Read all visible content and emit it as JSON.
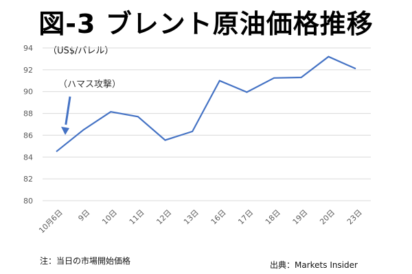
{
  "header": {
    "title": "図-3 ブレント原油価格推移"
  },
  "notes": {
    "unit": "（US$/バレル）",
    "annotation": "（ハマス攻撃）",
    "footnote": "注：当日の市場開始価格",
    "source": "出典：Markets Insider"
  },
  "colors": {
    "series": "#4472c4",
    "arrow": "#4472c4",
    "grid": "#d9d9d9"
  },
  "chart_data": {
    "type": "line",
    "title": "図-3 ブレント原油価格推移",
    "ylabel": "（US$/バレル）",
    "xlabel": "",
    "categories": [
      "10月6日",
      "9日",
      "10日",
      "11日",
      "12日",
      "13日",
      "16日",
      "17日",
      "18日",
      "19日",
      "20日",
      "23日"
    ],
    "series": [
      {
        "values": [
          84.5,
          86.5,
          88.15,
          87.7,
          85.55,
          86.35,
          91.0,
          89.95,
          91.25,
          91.3,
          93.2,
          92.1
        ]
      }
    ],
    "ylim": [
      80,
      94
    ],
    "yticks": [
      80,
      82,
      84,
      86,
      88,
      90,
      92,
      94
    ],
    "grid": true,
    "annotations": [
      {
        "text": "（ハマス攻撃）",
        "category": "10月6日",
        "type": "arrow-down"
      }
    ]
  }
}
